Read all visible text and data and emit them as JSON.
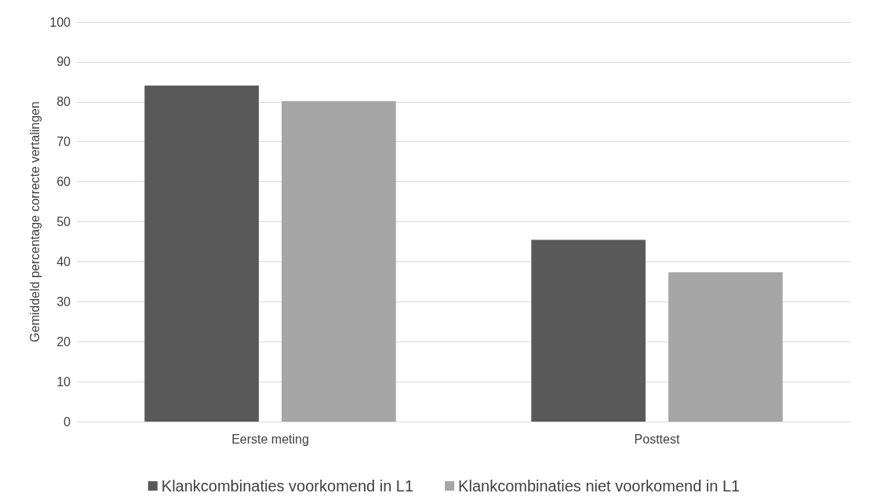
{
  "chart_data": {
    "type": "bar",
    "ylabel": "Gemiddeld percentage correcte vertalingen",
    "categories": [
      "Eerste meting",
      "Posttest"
    ],
    "series": [
      {
        "name": "Klankcombinaties voorkomend in L1",
        "color": "#595959",
        "values": [
          84.1,
          45.5
        ]
      },
      {
        "name": "Klankcombinaties niet voorkomend in L1",
        "color": "#a6a6a6",
        "values": [
          80.2,
          37.4
        ]
      }
    ],
    "ylim": [
      0,
      100
    ],
    "yticks": [
      0,
      10,
      20,
      30,
      40,
      50,
      60,
      70,
      80,
      90,
      100
    ],
    "grid": "y",
    "legend": "bottom"
  }
}
